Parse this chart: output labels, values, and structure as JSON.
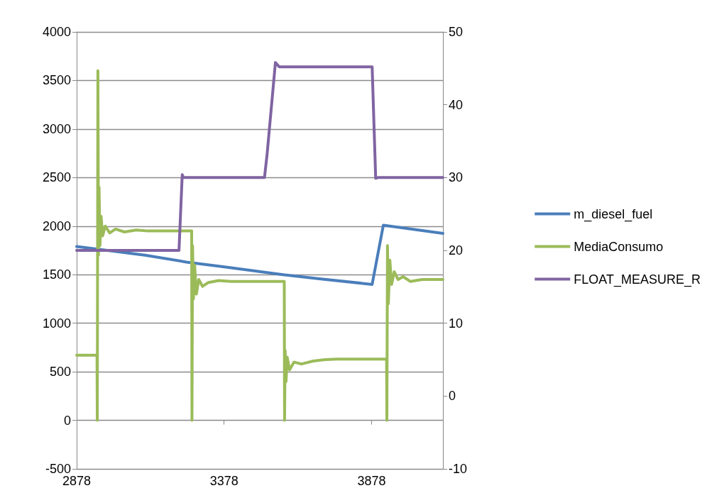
{
  "chart_data": {
    "type": "line",
    "xlim": [
      2878,
      4120
    ],
    "xticks": [
      2878,
      3378,
      3878
    ],
    "ylim": [
      -500,
      4000
    ],
    "yticks": [
      -500,
      0,
      500,
      1000,
      1500,
      2000,
      2500,
      3000,
      3500,
      4000
    ],
    "y2lim": [
      -10,
      50
    ],
    "y2ticks": [
      -10,
      0,
      10,
      20,
      30,
      40,
      50
    ],
    "grid": "y",
    "legend": "right",
    "marker": "none",
    "line_style": "solid",
    "series": [
      {
        "name": "m_diesel_fuel",
        "color": "#4a7ebb",
        "x": [
          2878,
          3110,
          3250,
          3379,
          3578,
          3695,
          3880,
          3918,
          4120
        ],
        "values": [
          1790,
          1700,
          1630,
          1580,
          1500,
          1460,
          1400,
          2010,
          1925
        ]
      },
      {
        "name": "MediaConsumo",
        "color": "#9bbb59",
        "x": [
          2878,
          2947,
          2948,
          2950,
          2952,
          2954,
          2957,
          2961,
          2966,
          2975,
          2990,
          3010,
          3040,
          3080,
          3120,
          3268,
          3269,
          3271,
          3274,
          3278,
          3284,
          3292,
          3305,
          3325,
          3360,
          3400,
          3582,
          3583,
          3585,
          3588,
          3592,
          3600,
          3615,
          3640,
          3680,
          3720,
          3760,
          3929,
          3930,
          3932,
          3935,
          3940,
          3946,
          3955,
          3968,
          3985,
          4010,
          4050,
          4120
        ],
        "values": [
          670,
          670,
          0,
          3600,
          1700,
          2400,
          1800,
          2100,
          1900,
          2000,
          1930,
          1970,
          1940,
          1960,
          1950,
          1950,
          0,
          1800,
          1250,
          1600,
          1300,
          1450,
          1380,
          1420,
          1440,
          1430,
          1430,
          0,
          720,
          400,
          650,
          520,
          600,
          580,
          610,
          625,
          630,
          630,
          0,
          1800,
          1200,
          1650,
          1400,
          1530,
          1450,
          1480,
          1430,
          1450,
          1450
        ]
      },
      {
        "name": "FLOAT_MEASURE_R",
        "color": "#8064a2",
        "axis": "y2",
        "x": [
          2878,
          3225,
          3236,
          3240,
          3515,
          3524,
          3552,
          3565,
          3880,
          3892,
          3900,
          4120
        ],
        "values": [
          20,
          20,
          30.4,
          30,
          30,
          33.3,
          45.8,
          45.2,
          45.2,
          29.9,
          30,
          30
        ]
      }
    ]
  }
}
